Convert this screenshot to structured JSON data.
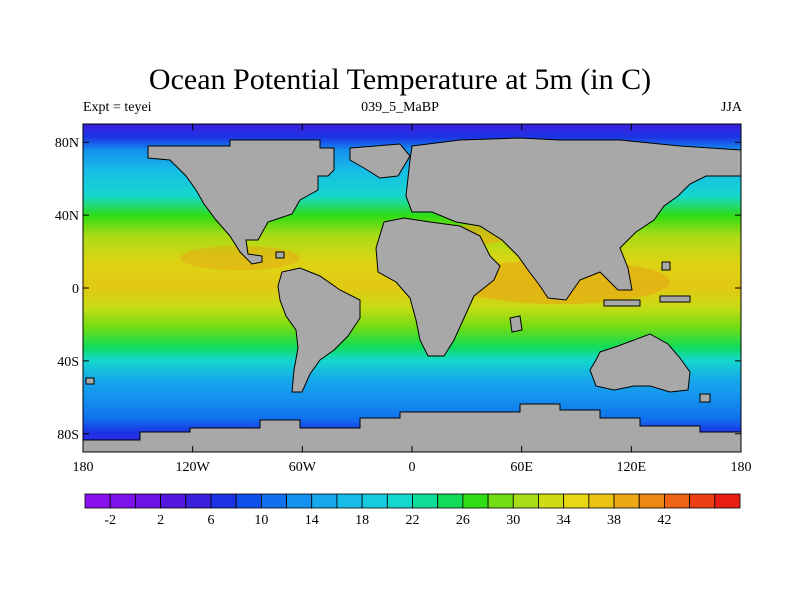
{
  "title": "Ocean Potential Temperature at 5m (in C)",
  "subtitle_left": "Expt = teyei",
  "subtitle_center": "039_5_MaBP",
  "subtitle_right": "JJA",
  "map": {
    "projection": "cylindrical-equidistant",
    "lon_range": [
      -180,
      180
    ],
    "lat_range": [
      -90,
      90
    ],
    "land_color": "#a8a8a8",
    "lon_ticks": [
      "180",
      "120W",
      "60W",
      "0",
      "60E",
      "120E",
      "180"
    ],
    "lat_ticks": [
      "80N",
      "40N",
      "0",
      "40S",
      "80S"
    ]
  },
  "colorbar": {
    "labels": [
      "-2",
      "2",
      "6",
      "10",
      "14",
      "18",
      "22",
      "26",
      "30",
      "34",
      "38",
      "42"
    ],
    "colors": [
      "#8a12f0",
      "#7d12ea",
      "#6c14e6",
      "#5518e0",
      "#3b20dc",
      "#1c33e4",
      "#1050ea",
      "#1070ee",
      "#1490ee",
      "#16a8ea",
      "#18bce8",
      "#16cbe0",
      "#14d8cc",
      "#10dc9a",
      "#10dc5a",
      "#30dc14",
      "#72dc14",
      "#a8dc14",
      "#cedc14",
      "#e8d814",
      "#ecc414",
      "#eca814",
      "#ec8814",
      "#ec6414",
      "#ec4014",
      "#e81e14"
    ]
  }
}
